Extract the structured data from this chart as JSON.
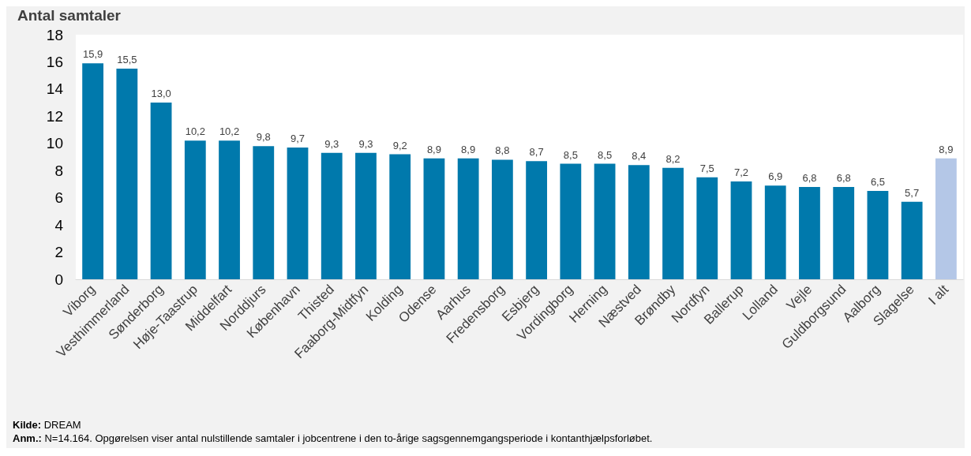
{
  "chart_data": {
    "type": "bar",
    "ylabel": "Antal samtaler",
    "categories": [
      "Viborg",
      "Vesthimmerland",
      "Sønderborg",
      "Høje-Taastrup",
      "Middelfart",
      "Norddjurs",
      "København",
      "Thisted",
      "Faaborg-Midtfyn",
      "Kolding",
      "Odense",
      "Aarhus",
      "Fredensborg",
      "Esbjerg",
      "Vordingborg",
      "Herning",
      "Næstved",
      "Brøndby",
      "Nordfyn",
      "Ballerup",
      "Lolland",
      "Vejle",
      "Guldborgsund",
      "Aalborg",
      "Slagelse",
      "I alt"
    ],
    "values": [
      15.9,
      15.5,
      13.0,
      10.2,
      10.2,
      9.8,
      9.7,
      9.3,
      9.3,
      9.2,
      8.9,
      8.9,
      8.8,
      8.7,
      8.5,
      8.5,
      8.4,
      8.2,
      7.5,
      7.2,
      6.9,
      6.8,
      6.8,
      6.5,
      5.7,
      8.9
    ],
    "value_labels": [
      "15,9",
      "15,5",
      "13,0",
      "10,2",
      "10,2",
      "9,8",
      "9,7",
      "9,3",
      "9,3",
      "9,2",
      "8,9",
      "8,9",
      "8,8",
      "8,7",
      "8,5",
      "8,5",
      "8,4",
      "8,2",
      "7,5",
      "7,2",
      "6,9",
      "6,8",
      "6,8",
      "6,5",
      "5,7",
      "8,9"
    ],
    "colors": [
      "#0079ac",
      "#0079ac",
      "#0079ac",
      "#0079ac",
      "#0079ac",
      "#0079ac",
      "#0079ac",
      "#0079ac",
      "#0079ac",
      "#0079ac",
      "#0079ac",
      "#0079ac",
      "#0079ac",
      "#0079ac",
      "#0079ac",
      "#0079ac",
      "#0079ac",
      "#0079ac",
      "#0079ac",
      "#0079ac",
      "#0079ac",
      "#0079ac",
      "#0079ac",
      "#0079ac",
      "#0079ac",
      "#b4c7e7"
    ],
    "ylim": [
      0,
      18
    ],
    "yticks": [
      0,
      2,
      4,
      6,
      8,
      10,
      12,
      14,
      16,
      18
    ],
    "grid": false,
    "annotations": [
      "Kilde: DREAM",
      "Anm.: N=14.164. Opgørelsen viser antal nulstillende samtaler i jobcentrene i den to-årige sagsgennemgangsperiode i kontanthjælpsforløbet."
    ]
  }
}
